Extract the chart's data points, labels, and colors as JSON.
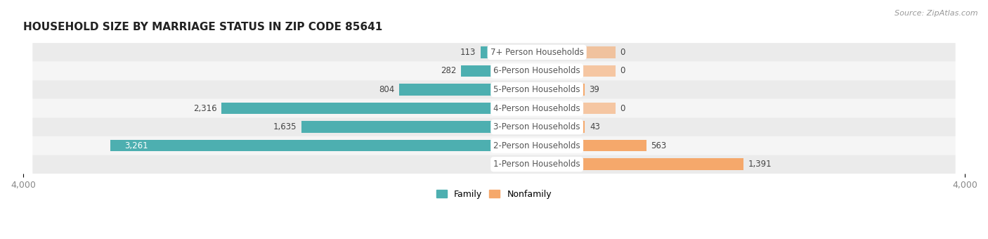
{
  "title": "HOUSEHOLD SIZE BY MARRIAGE STATUS IN ZIP CODE 85641",
  "source": "Source: ZipAtlas.com",
  "categories": [
    "7+ Person Households",
    "6-Person Households",
    "5-Person Households",
    "4-Person Households",
    "3-Person Households",
    "2-Person Households",
    "1-Person Households"
  ],
  "family_values": [
    113,
    282,
    804,
    2316,
    1635,
    3261,
    0
  ],
  "nonfamily_values": [
    0,
    0,
    39,
    0,
    43,
    563,
    1391
  ],
  "family_color": "#4DAFB0",
  "nonfamily_color": "#F5A86B",
  "xlim": 4000,
  "bar_height": 0.62,
  "row_bg_even": "#EBEBEB",
  "row_bg_odd": "#F5F5F5",
  "title_fontsize": 11,
  "label_fontsize": 8.5,
  "tick_fontsize": 9,
  "source_fontsize": 8,
  "center_label_color": "#555555",
  "value_label_color": "#444444",
  "value_label_inside_color": "#ffffff",
  "axis_label_color": "#888888"
}
